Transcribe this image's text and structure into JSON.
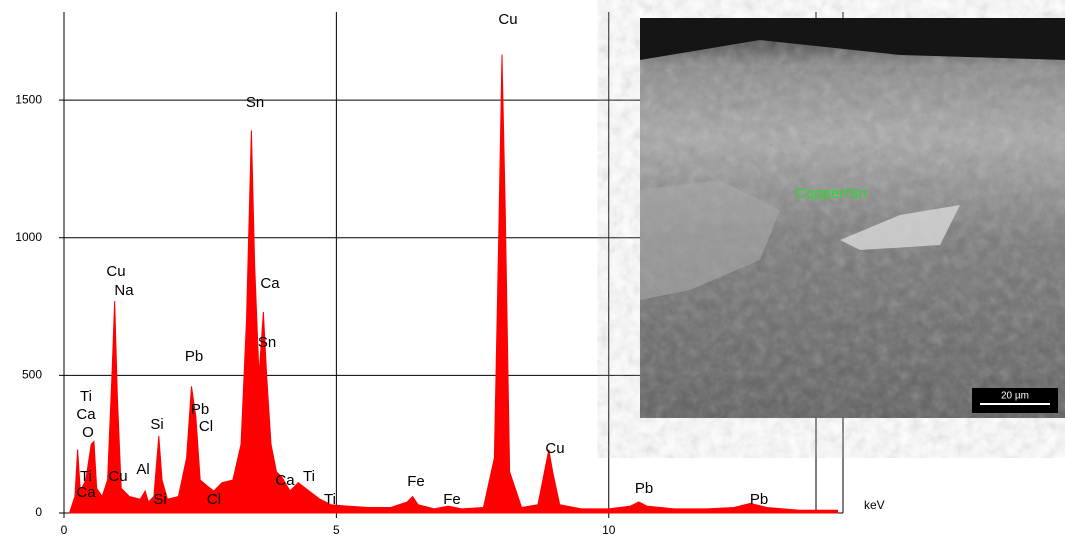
{
  "chart_data": {
    "type": "area",
    "color": "#ff0000",
    "x_unit": "keV",
    "x": [
      0.1,
      0.2,
      0.25,
      0.3,
      0.4,
      0.5,
      0.55,
      0.6,
      0.7,
      0.8,
      0.88,
      0.93,
      0.98,
      1.05,
      1.2,
      1.4,
      1.49,
      1.55,
      1.65,
      1.74,
      1.8,
      1.9,
      2.1,
      2.25,
      2.34,
      2.42,
      2.5,
      2.62,
      2.75,
      2.9,
      3.1,
      3.25,
      3.35,
      3.44,
      3.5,
      3.58,
      3.66,
      3.72,
      3.8,
      3.9,
      4.0,
      4.15,
      4.3,
      4.5,
      4.7,
      4.9,
      5.2,
      5.6,
      6.0,
      6.3,
      6.4,
      6.5,
      6.8,
      7.05,
      7.3,
      7.7,
      7.9,
      7.98,
      8.04,
      8.1,
      8.18,
      8.4,
      8.7,
      8.85,
      8.9,
      8.97,
      9.1,
      9.5,
      10.0,
      10.4,
      10.55,
      10.7,
      11.2,
      11.8,
      12.3,
      12.6,
      12.9,
      13.5,
      14.2
    ],
    "values": [
      0,
      60,
      230,
      80,
      120,
      250,
      260,
      90,
      60,
      120,
      500,
      770,
      420,
      90,
      60,
      50,
      80,
      40,
      60,
      280,
      120,
      50,
      60,
      200,
      460,
      350,
      120,
      100,
      80,
      110,
      120,
      250,
      700,
      1390,
      900,
      500,
      730,
      500,
      250,
      150,
      130,
      80,
      110,
      80,
      50,
      30,
      25,
      20,
      20,
      40,
      60,
      30,
      15,
      25,
      15,
      20,
      200,
      1000,
      1665,
      1100,
      150,
      20,
      30,
      180,
      230,
      150,
      30,
      15,
      15,
      25,
      40,
      25,
      15,
      15,
      20,
      35,
      20,
      10,
      10
    ],
    "xlim": [
      0,
      14.3
    ],
    "ylim": [
      0,
      1820
    ],
    "xticks": [
      0,
      5,
      10
    ],
    "yticks": [
      0,
      500,
      1000,
      1500
    ],
    "grid": true,
    "annotations": [
      "Ti",
      "Ca",
      "O",
      "Ti",
      "Ca",
      "Cu",
      "Cu",
      "Na",
      "Al",
      "Si",
      "Si",
      "Pb",
      "Pb",
      "Cl",
      "Cl",
      "Sn",
      "Ca",
      "Sn",
      "Ca",
      "Ti",
      "Ti",
      "Fe",
      "Fe",
      "Cu",
      "Cu",
      "Pb",
      "Pb"
    ],
    "inset": {
      "label": "Copper/Sn",
      "scale_bar": "20 µm"
    }
  }
}
